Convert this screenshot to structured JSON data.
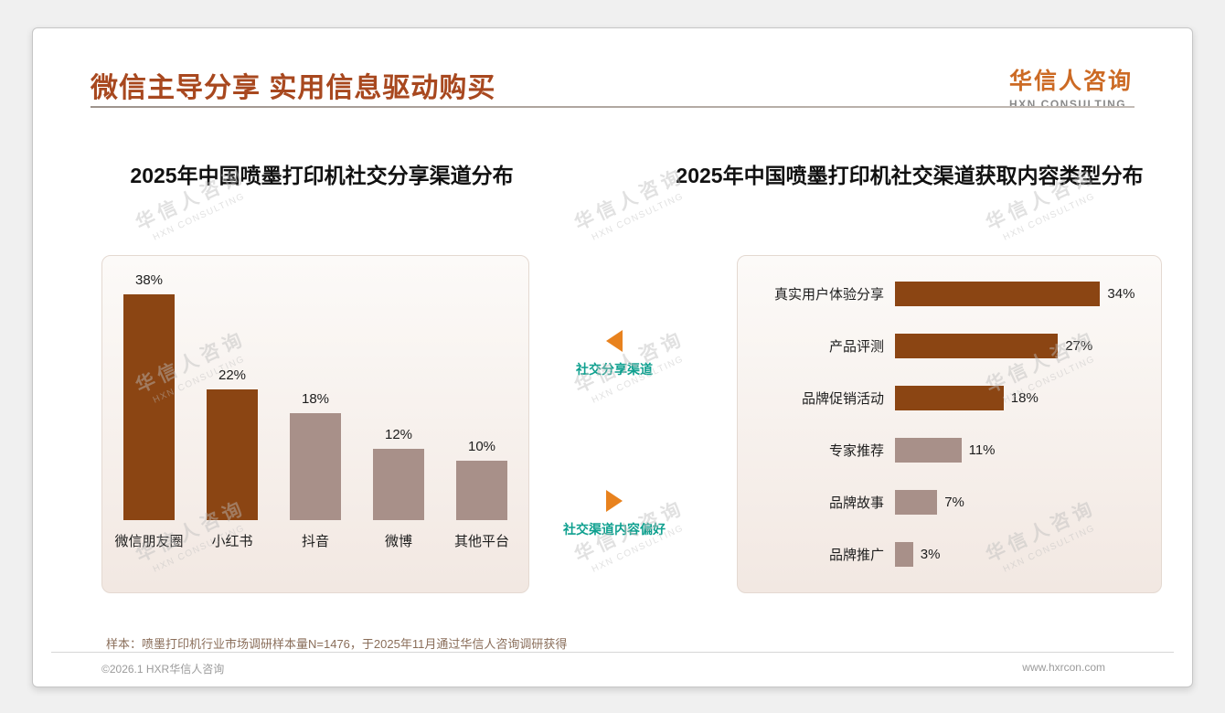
{
  "header": {
    "title": "微信主导分享 实用信息驱动购买",
    "logo": {
      "name": "华信人咨询",
      "sub": "HXN CONSULTING"
    }
  },
  "annotations": {
    "left_label": "社交分享渠道",
    "right_label": "社交渠道内容偏好"
  },
  "footer": {
    "note": "样本：喷墨打印机行业市场调研样本量N=1476，于2025年11月通过华信人咨询调研获得",
    "left": "©2026.1 HXR华信人咨询",
    "right": "www.hxrcon.com"
  },
  "watermark": {
    "line1": "华信人咨询",
    "line2": "HXN CONSULTING"
  },
  "colors": {
    "title": "#A8481F",
    "logo_orange": "#CC6A24",
    "bar_dark": "#8B4513",
    "bar_light": "#A89089",
    "annotation_teal": "#0FA08F",
    "arrow_orange": "#E8821E"
  },
  "chart_data": [
    {
      "type": "bar",
      "orientation": "vertical",
      "title": "2025年中国喷墨打印机社交分享渠道分布",
      "categories": [
        "微信朋友圈",
        "小红书",
        "抖音",
        "微博",
        "其他平台"
      ],
      "values": [
        38,
        22,
        18,
        12,
        10
      ],
      "unit": "%",
      "value_labels": [
        "38%",
        "22%",
        "18%",
        "12%",
        "10%"
      ],
      "bar_colors": [
        "#8B4513",
        "#8B4513",
        "#A89089",
        "#A89089",
        "#A89089"
      ],
      "ylim": [
        0,
        40
      ],
      "grid": false,
      "legend": false
    },
    {
      "type": "bar",
      "orientation": "horizontal",
      "title": "2025年中国喷墨打印机社交渠道获取内容类型分布",
      "categories": [
        "真实用户体验分享",
        "产品评测",
        "品牌促销活动",
        "专家推荐",
        "品牌故事",
        "品牌推广"
      ],
      "values": [
        34,
        27,
        18,
        11,
        7,
        3
      ],
      "unit": "%",
      "value_labels": [
        "34%",
        "27%",
        "18%",
        "11%",
        "7%",
        "3%"
      ],
      "bar_colors": [
        "#8B4513",
        "#8B4513",
        "#8B4513",
        "#A89089",
        "#A89089",
        "#A89089"
      ],
      "xlim": [
        0,
        36
      ],
      "grid": false,
      "legend": false
    }
  ]
}
